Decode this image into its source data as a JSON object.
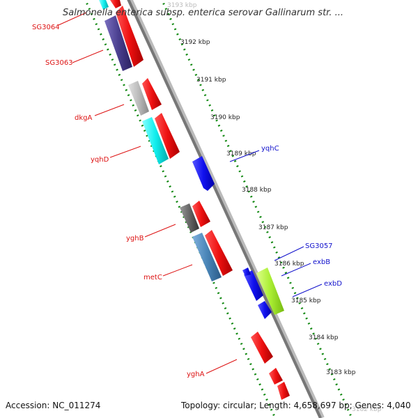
{
  "title": "Salmonella enterica subsp. enterica serovar Gallinarum str. ...",
  "footer": {
    "accession": "Accession: NC_011274",
    "topology": "Topology: circular; Length: 4,658,697 bp; Genes: 4,040"
  },
  "ticks": [
    "3193 kbp",
    "3192 kbp",
    "3191 kbp",
    "3190 kbp",
    "3189 kbp",
    "3188 kbp",
    "3187 kbp",
    "3186 kbp",
    "3185 kbp",
    "3184 kbp",
    "3183 kbp",
    "3182 kbp"
  ],
  "gene_labels": {
    "sg3064": "SG3064",
    "sg3063": "SG3063",
    "dkga": "dkgA",
    "yqhd": "yqhD",
    "yqhc": "yqhC",
    "yghb": "yghB",
    "sg3057": "SG3057",
    "metc": "metC",
    "exbb": "exbB",
    "exbd": "exbD",
    "ygha": "yghA"
  },
  "colors": {
    "red": "#ee1111",
    "cyan": "#11eeee",
    "navy": "#4a3f8f",
    "gray": "#bbbbbb",
    "darkgray": "#666666",
    "steel": "#4a86b8",
    "blue": "#1111ee",
    "lime": "#aaee33",
    "backbone": "#888888",
    "tickgreen": "#118811"
  }
}
